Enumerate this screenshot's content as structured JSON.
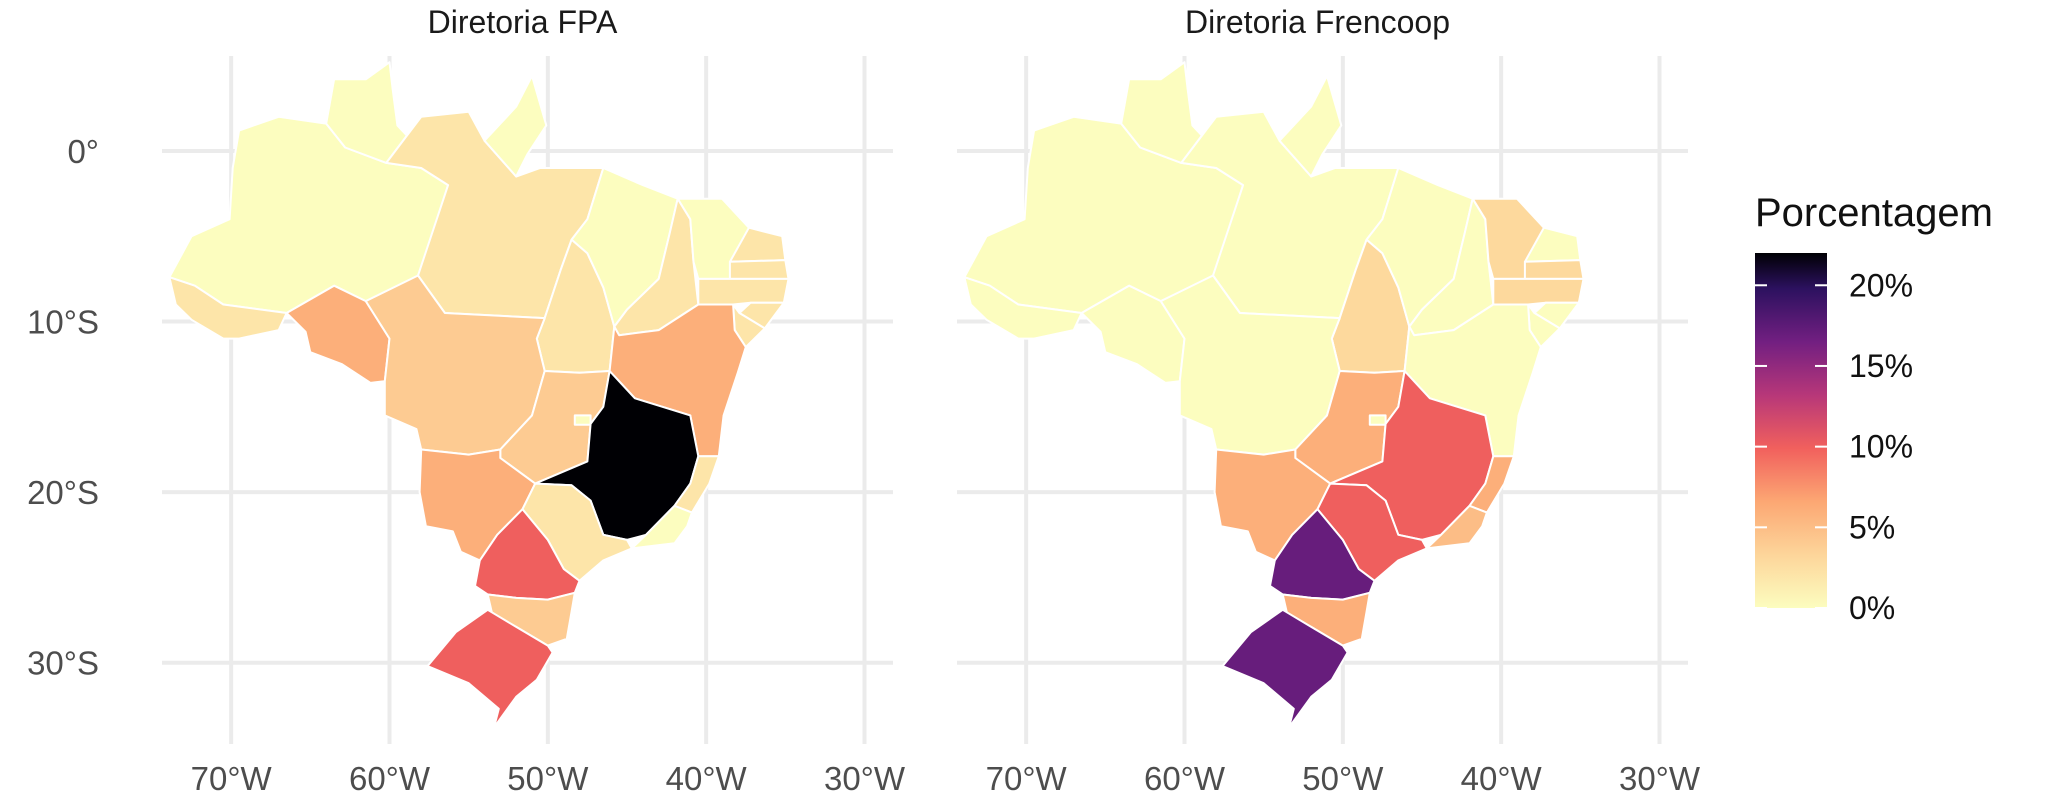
{
  "chart_data": {
    "type": "choropleth",
    "legend": {
      "title": "Porcentagem",
      "ticks": [
        "0%",
        "5%",
        "10%",
        "15%",
        "20%"
      ],
      "tick_values": [
        0,
        5,
        10,
        15,
        20
      ],
      "range": [
        0,
        22
      ],
      "colormap": "magma",
      "placement": "right"
    },
    "axes": {
      "x_ticks": [
        "70°W",
        "60°W",
        "50°W",
        "40°W",
        "30°W"
      ],
      "x_tick_values": [
        -70,
        -60,
        -50,
        -40,
        -30
      ],
      "y_ticks": [
        "0°",
        "10°S",
        "20°S",
        "30°S"
      ],
      "y_tick_values": [
        0,
        -10,
        -20,
        -30
      ],
      "grid": true
    },
    "panels": [
      {
        "title": "Diretoria FPA",
        "values": {
          "AC": 2,
          "AM": 0,
          "RR": 0,
          "PA": 2,
          "AP": 0,
          "RO": 6,
          "TO": 2,
          "MT": 4,
          "MA": 0,
          "PI": 2,
          "CE": 0,
          "RN": 2,
          "PB": 2,
          "PE": 2,
          "AL": 2,
          "SE": 2,
          "BA": 6,
          "GO": 4,
          "DF": 0,
          "MS": 6,
          "MG": 22,
          "ES": 2,
          "RJ": 0,
          "SP": 2,
          "PR": 10,
          "SC": 4,
          "RS": 10
        }
      },
      {
        "title": "Diretoria Frencoop",
        "values": {
          "AC": 0,
          "AM": 0,
          "RR": 0,
          "PA": 0,
          "AP": 0,
          "RO": 0,
          "TO": 3,
          "MT": 0,
          "MA": 0,
          "PI": 0,
          "CE": 3,
          "RN": 0,
          "PB": 3,
          "PE": 3,
          "AL": 0,
          "SE": 0,
          "BA": 0,
          "GO": 6,
          "DF": 0,
          "MS": 6,
          "MG": 10,
          "ES": 6,
          "RJ": 5,
          "SP": 10,
          "PR": 17,
          "SC": 6,
          "RS": 17
        }
      }
    ]
  }
}
